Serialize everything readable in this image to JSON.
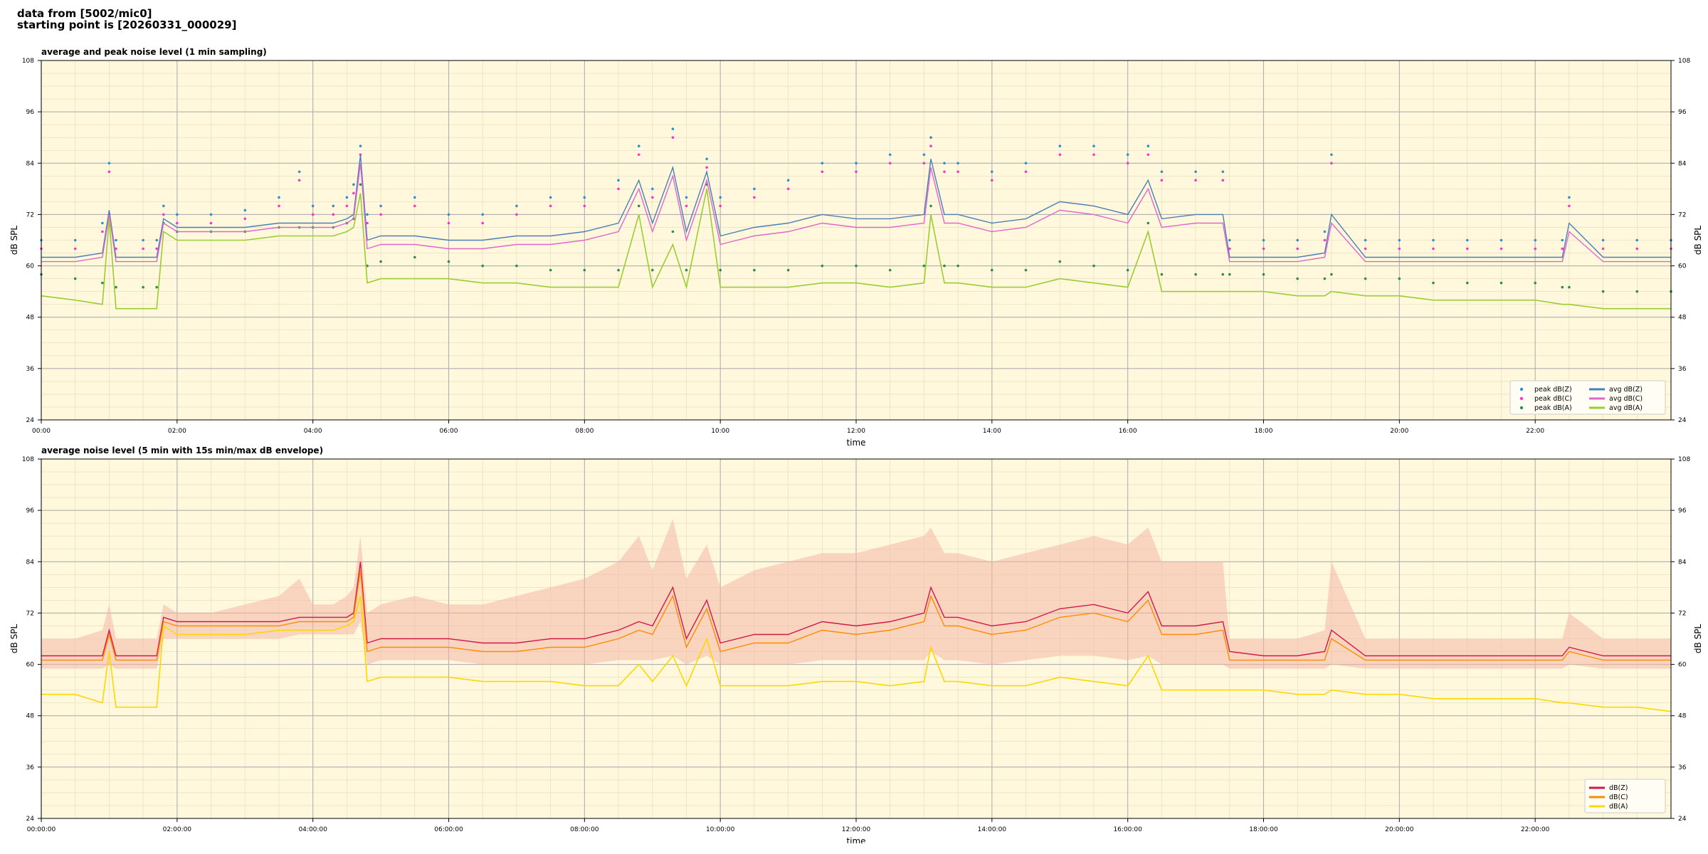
{
  "header": {
    "line1": "data from [5002/mic0]",
    "line2": "starting point is [20260331_000029]"
  },
  "chart_data": [
    {
      "type": "line",
      "title": "average and peak noise level (1 min sampling)",
      "xlabel": "time",
      "ylabel": "dB SPL",
      "ylabel_right": "dB SPL",
      "xlim": [
        0,
        24
      ],
      "ylim": [
        24,
        108
      ],
      "grid": true,
      "legend_placement": "bottom-right",
      "yticks": [
        "24",
        "36",
        "48",
        "60",
        "72",
        "84",
        "96",
        "108"
      ],
      "xticks": [
        "00:00",
        "02:00",
        "04:00",
        "06:00",
        "08:00",
        "10:00",
        "12:00",
        "14:00",
        "16:00",
        "18:00",
        "20:00",
        "22:00"
      ],
      "legend": [
        "peak dB(Z)",
        "peak dB(C)",
        "peak dB(A)",
        "avg dB(Z)",
        "avg dB(C)",
        "avg dB(A)"
      ],
      "colors": {
        "avg_z": "#4a7fb5",
        "avg_c": "#e066cc",
        "avg_a": "#9acd32",
        "peak_z": "#2e8fd6",
        "peak_c": "#ff33cc",
        "peak_a": "#2e8b57",
        "background": "#fff8dc"
      },
      "x": [
        0,
        0.5,
        0.9,
        1.0,
        1.1,
        1.5,
        1.7,
        1.8,
        2.0,
        2.5,
        3.0,
        3.5,
        3.8,
        4.0,
        4.3,
        4.5,
        4.6,
        4.7,
        4.8,
        5.0,
        5.5,
        6.0,
        6.5,
        7.0,
        7.5,
        8.0,
        8.5,
        8.8,
        9.0,
        9.3,
        9.5,
        9.8,
        10.0,
        10.5,
        11.0,
        11.5,
        12.0,
        12.5,
        13.0,
        13.1,
        13.3,
        13.5,
        14.0,
        14.5,
        15.0,
        15.5,
        16.0,
        16.3,
        16.5,
        17.0,
        17.4,
        17.5,
        18.0,
        18.5,
        18.9,
        19.0,
        19.5,
        20.0,
        20.5,
        21.0,
        21.5,
        22.0,
        22.4,
        22.5,
        23.0,
        23.5,
        24.0
      ],
      "series": [
        {
          "name": "avg dB(Z)",
          "values": [
            62,
            62,
            63,
            73,
            62,
            62,
            62,
            71,
            69,
            69,
            69,
            70,
            70,
            70,
            70,
            71,
            72,
            86,
            66,
            67,
            67,
            66,
            66,
            67,
            67,
            68,
            70,
            80,
            70,
            83,
            68,
            82,
            67,
            69,
            70,
            72,
            71,
            71,
            72,
            85,
            72,
            72,
            70,
            71,
            75,
            74,
            72,
            80,
            71,
            72,
            72,
            62,
            62,
            62,
            63,
            72,
            62,
            62,
            62,
            62,
            62,
            62,
            62,
            70,
            62,
            62,
            62
          ]
        },
        {
          "name": "avg dB(C)",
          "values": [
            61,
            61,
            62,
            72,
            61,
            61,
            61,
            70,
            68,
            68,
            68,
            69,
            69,
            69,
            69,
            70,
            71,
            84,
            64,
            65,
            65,
            64,
            64,
            65,
            65,
            66,
            68,
            78,
            68,
            81,
            66,
            80,
            65,
            67,
            68,
            70,
            69,
            69,
            70,
            83,
            70,
            70,
            68,
            69,
            73,
            72,
            70,
            78,
            69,
            70,
            70,
            61,
            61,
            61,
            62,
            70,
            61,
            61,
            61,
            61,
            61,
            61,
            61,
            68,
            61,
            61,
            61
          ]
        },
        {
          "name": "avg dB(A)",
          "values": [
            53,
            52,
            51,
            71,
            50,
            50,
            50,
            68,
            66,
            66,
            66,
            67,
            67,
            67,
            67,
            68,
            69,
            77,
            56,
            57,
            57,
            57,
            56,
            56,
            55,
            55,
            55,
            72,
            55,
            65,
            55,
            78,
            55,
            55,
            55,
            56,
            56,
            55,
            56,
            72,
            56,
            56,
            55,
            55,
            57,
            56,
            55,
            68,
            54,
            54,
            54,
            54,
            54,
            53,
            53,
            54,
            53,
            53,
            52,
            52,
            52,
            52,
            51,
            51,
            50,
            50,
            50
          ]
        },
        {
          "name": "peak dB(Z)",
          "values": [
            66,
            66,
            70,
            84,
            66,
            66,
            66,
            74,
            72,
            72,
            73,
            76,
            82,
            74,
            74,
            76,
            79,
            88,
            72,
            74,
            76,
            72,
            72,
            74,
            76,
            76,
            80,
            88,
            78,
            92,
            76,
            85,
            76,
            78,
            80,
            84,
            84,
            86,
            86,
            90,
            84,
            84,
            82,
            84,
            88,
            88,
            86,
            88,
            82,
            82,
            82,
            66,
            66,
            66,
            68,
            86,
            66,
            66,
            66,
            66,
            66,
            66,
            66,
            76,
            66,
            66,
            66
          ]
        },
        {
          "name": "peak dB(C)",
          "values": [
            64,
            64,
            68,
            82,
            64,
            64,
            64,
            72,
            70,
            70,
            71,
            74,
            80,
            72,
            72,
            74,
            77,
            86,
            70,
            72,
            74,
            70,
            70,
            72,
            74,
            74,
            78,
            86,
            76,
            90,
            74,
            83,
            74,
            76,
            78,
            82,
            82,
            84,
            84,
            88,
            82,
            82,
            80,
            82,
            86,
            86,
            84,
            86,
            80,
            80,
            80,
            64,
            64,
            64,
            66,
            84,
            64,
            64,
            64,
            64,
            64,
            64,
            64,
            74,
            64,
            64,
            64
          ]
        },
        {
          "name": "peak dB(A)",
          "values": [
            58,
            57,
            56,
            72,
            55,
            55,
            55,
            70,
            68,
            68,
            68,
            69,
            69,
            69,
            69,
            70,
            71,
            79,
            60,
            61,
            62,
            61,
            60,
            60,
            59,
            59,
            59,
            74,
            59,
            68,
            59,
            79,
            59,
            59,
            59,
            60,
            60,
            59,
            60,
            74,
            60,
            60,
            59,
            59,
            61,
            60,
            59,
            70,
            58,
            58,
            58,
            58,
            58,
            57,
            57,
            58,
            57,
            57,
            56,
            56,
            56,
            56,
            55,
            55,
            54,
            54,
            54
          ]
        }
      ]
    },
    {
      "type": "line",
      "title": "average noise level (5 min with 15s min/max dB envelope)",
      "xlabel": "time",
      "ylabel": "dB SPL",
      "ylabel_right": "dB SPL",
      "xlim": [
        0,
        24
      ],
      "ylim": [
        24,
        108
      ],
      "grid": true,
      "legend_placement": "bottom-right",
      "yticks": [
        "24",
        "36",
        "48",
        "60",
        "72",
        "84",
        "96",
        "108"
      ],
      "xticks": [
        "00:00:00",
        "02:00:00",
        "04:00:00",
        "06:00:00",
        "08:00:00",
        "10:00:00",
        "12:00:00",
        "14:00:00",
        "16:00:00",
        "18:00:00",
        "20:00:00",
        "22:00:00"
      ],
      "legend": [
        "dB(Z)",
        "dB(C)",
        "dB(A)"
      ],
      "colors": {
        "z": "#d1184a",
        "c": "#ff8c00",
        "a": "#ffd700",
        "envelope": "#f4b6a6",
        "background": "#fff8dc"
      },
      "x": [
        0,
        0.5,
        0.9,
        1.0,
        1.1,
        1.5,
        1.7,
        1.8,
        2.0,
        2.5,
        3.0,
        3.5,
        3.8,
        4.0,
        4.3,
        4.5,
        4.6,
        4.7,
        4.8,
        5.0,
        5.5,
        6.0,
        6.5,
        7.0,
        7.5,
        8.0,
        8.5,
        8.8,
        9.0,
        9.3,
        9.5,
        9.8,
        10.0,
        10.5,
        11.0,
        11.5,
        12.0,
        12.5,
        13.0,
        13.1,
        13.3,
        13.5,
        14.0,
        14.5,
        15.0,
        15.5,
        16.0,
        16.3,
        16.5,
        17.0,
        17.4,
        17.5,
        18.0,
        18.5,
        18.9,
        19.0,
        19.5,
        20.0,
        20.5,
        21.0,
        21.5,
        22.0,
        22.4,
        22.5,
        23.0,
        23.5,
        24.0
      ],
      "series": [
        {
          "name": "dB(Z)",
          "values": [
            62,
            62,
            62,
            68,
            62,
            62,
            62,
            71,
            70,
            70,
            70,
            70,
            71,
            71,
            71,
            71,
            72,
            84,
            65,
            66,
            66,
            66,
            65,
            65,
            66,
            66,
            68,
            70,
            69,
            78,
            66,
            75,
            65,
            67,
            67,
            70,
            69,
            70,
            72,
            78,
            71,
            71,
            69,
            70,
            73,
            74,
            72,
            77,
            69,
            69,
            70,
            63,
            62,
            62,
            63,
            68,
            62,
            62,
            62,
            62,
            62,
            62,
            62,
            64,
            62,
            62,
            62
          ]
        },
        {
          "name": "dB(C)",
          "values": [
            61,
            61,
            61,
            67,
            61,
            61,
            61,
            70,
            69,
            69,
            69,
            69,
            70,
            70,
            70,
            70,
            71,
            82,
            63,
            64,
            64,
            64,
            63,
            63,
            64,
            64,
            66,
            68,
            67,
            76,
            64,
            73,
            63,
            65,
            65,
            68,
            67,
            68,
            70,
            76,
            69,
            69,
            67,
            68,
            71,
            72,
            70,
            75,
            67,
            67,
            68,
            61,
            61,
            61,
            61,
            66,
            61,
            61,
            61,
            61,
            61,
            61,
            61,
            63,
            61,
            61,
            61
          ]
        },
        {
          "name": "dB(A)",
          "values": [
            53,
            53,
            51,
            63,
            50,
            50,
            50,
            69,
            67,
            67,
            67,
            68,
            68,
            68,
            68,
            69,
            70,
            76,
            56,
            57,
            57,
            57,
            56,
            56,
            56,
            55,
            55,
            60,
            56,
            62,
            55,
            66,
            55,
            55,
            55,
            56,
            56,
            55,
            56,
            64,
            56,
            56,
            55,
            55,
            57,
            56,
            55,
            62,
            54,
            54,
            54,
            54,
            54,
            53,
            53,
            54,
            53,
            53,
            52,
            52,
            52,
            52,
            51,
            51,
            50,
            50,
            49
          ]
        },
        {
          "name": "envelope max",
          "values": [
            66,
            66,
            68,
            74,
            66,
            66,
            66,
            74,
            72,
            72,
            74,
            76,
            80,
            74,
            74,
            76,
            78,
            90,
            72,
            74,
            76,
            74,
            74,
            76,
            78,
            80,
            84,
            90,
            82,
            94,
            80,
            88,
            78,
            82,
            84,
            86,
            86,
            88,
            90,
            92,
            86,
            86,
            84,
            86,
            88,
            90,
            88,
            92,
            84,
            84,
            84,
            66,
            66,
            66,
            68,
            84,
            66,
            66,
            66,
            66,
            66,
            66,
            66,
            72,
            66,
            66,
            66
          ]
        },
        {
          "name": "envelope min",
          "values": [
            59,
            59,
            59,
            60,
            59,
            59,
            59,
            66,
            66,
            66,
            66,
            66,
            67,
            67,
            67,
            67,
            67,
            70,
            60,
            61,
            61,
            61,
            60,
            60,
            60,
            60,
            61,
            61,
            61,
            62,
            60,
            62,
            60,
            60,
            60,
            61,
            61,
            61,
            61,
            63,
            61,
            61,
            60,
            61,
            62,
            62,
            61,
            62,
            60,
            60,
            60,
            59,
            59,
            59,
            59,
            60,
            59,
            59,
            59,
            59,
            59,
            59,
            59,
            60,
            59,
            59,
            59
          ]
        }
      ]
    }
  ]
}
